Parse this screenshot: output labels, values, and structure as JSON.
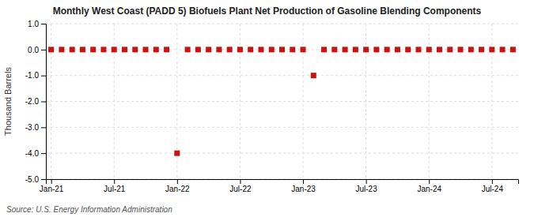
{
  "chart_data": {
    "type": "scatter",
    "title": "Monthly West Coast (PADD 5) Biofuels Plant Net Production of Gasoline Blending Components",
    "y_label": "Thousand Barrels",
    "source": "Source: U.S. Energy Information Administration",
    "categories": [
      "Jan-21",
      null,
      null,
      null,
      null,
      null,
      "Jul-21",
      null,
      null,
      null,
      null,
      null,
      "Jan-22",
      null,
      null,
      null,
      null,
      null,
      "Jul-22",
      null,
      null,
      null,
      null,
      null,
      "Jan-23",
      null,
      null,
      null,
      null,
      null,
      "Jul-23",
      null,
      null,
      null,
      null,
      null,
      "Jan-24",
      null,
      null,
      null,
      null,
      null,
      "Jul-24",
      null,
      null
    ],
    "values": [
      0,
      0,
      0,
      0,
      0,
      0,
      0,
      0,
      0,
      0,
      0,
      0,
      -4.0,
      0,
      0,
      0,
      0,
      0,
      0,
      0,
      0,
      0,
      0,
      0,
      0,
      -1.0,
      0,
      0,
      0,
      0,
      0,
      0,
      0,
      0,
      0,
      0,
      0,
      0,
      0,
      0,
      0,
      0,
      0,
      0,
      0
    ],
    "color": "#cc1111",
    "marker": "square",
    "ylim": [
      -5.0,
      1.0
    ],
    "yticks": [
      {
        "value": 1.0,
        "label": "1.0"
      },
      {
        "value": 0.0,
        "label": "0.0"
      },
      {
        "value": -1.0,
        "label": "-1.0"
      },
      {
        "value": -2.0,
        "label": "-2.0"
      },
      {
        "value": -3.0,
        "label": "-3.0"
      },
      {
        "value": -4.0,
        "label": "-4.0"
      },
      {
        "value": -5.0,
        "label": "-5.0"
      }
    ],
    "grid": true
  }
}
